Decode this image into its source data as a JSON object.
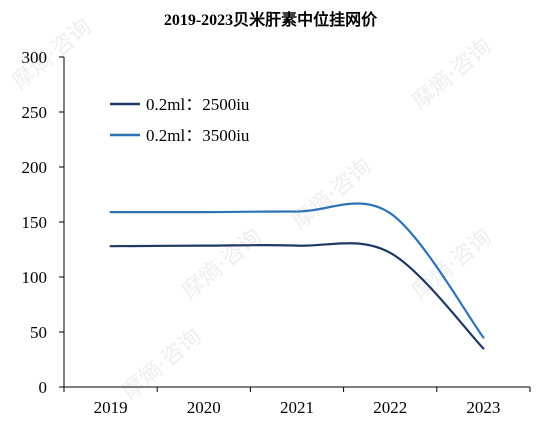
{
  "chart_data": {
    "type": "line",
    "title": "2019-2023贝米肝素中位挂网价",
    "x": [
      "2019",
      "2020",
      "2021",
      "2022",
      "2023"
    ],
    "ylim": [
      0,
      300
    ],
    "yticks": [
      0,
      50,
      100,
      150,
      200,
      250,
      300
    ],
    "grid": false,
    "legend_position": "top-left",
    "series": [
      {
        "name": "0.2ml：2500iu",
        "values": [
          128,
          128.5,
          128.5,
          122,
          35
        ],
        "color": "#1f3864"
      },
      {
        "name": "0.2ml：3500iu",
        "values": [
          159,
          159,
          159.5,
          158,
          45
        ],
        "color": "#2e74b5"
      }
    ],
    "watermark": "摩熵·咨询"
  }
}
